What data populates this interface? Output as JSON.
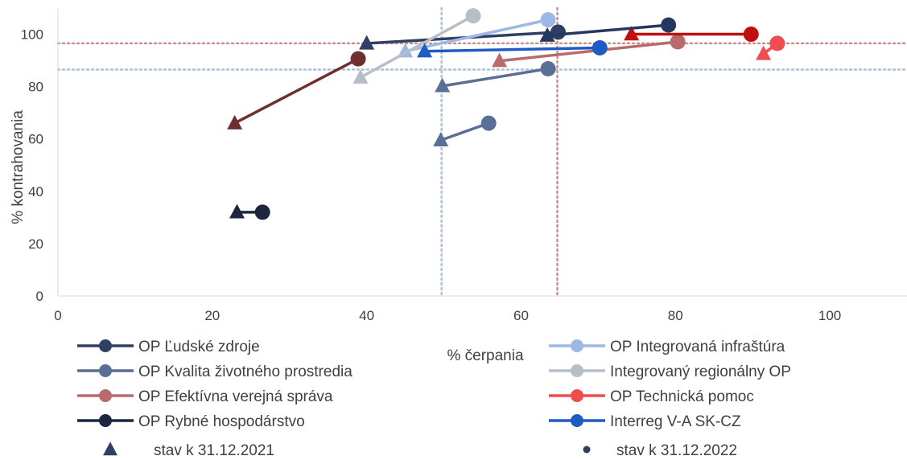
{
  "chart_data": {
    "type": "scatter",
    "xlabel": "% čerpania",
    "ylabel": "% kontrahovania",
    "xlim": [
      0,
      110
    ],
    "ylim": [
      0,
      110
    ],
    "xticks": [
      0,
      20,
      40,
      60,
      80,
      100
    ],
    "yticks": [
      0,
      20,
      40,
      60,
      80,
      100
    ],
    "grid": false,
    "reference_lines": {
      "vertical": [
        {
          "x": 49.7,
          "color": "#a9c1df"
        },
        {
          "x": 64.7,
          "color": "#cc8f8f"
        }
      ],
      "horizontal": [
        {
          "y": 96.5,
          "color": "#cc8f8f"
        },
        {
          "y": 86.5,
          "color": "#a9c1df"
        }
      ]
    },
    "series": [
      {
        "name": "OP Ľudské zdroje",
        "color": "#2e3f63",
        "points": [
          {
            "x": 40,
            "y": 96.5,
            "end": 2021
          },
          {
            "x": 64.8,
            "y": 100.8,
            "end": 2022
          }
        ]
      },
      {
        "name": "OP Integrovaná infraštúra",
        "color": "#9cb8e4",
        "points": [
          {
            "x": 45,
            "y": 93.5,
            "end": 2021
          },
          {
            "x": 63.5,
            "y": 105.5,
            "end": 2022
          }
        ]
      },
      {
        "name": "OP Kvalita životného prostredia",
        "color": "#5a6f96",
        "points": [
          {
            "x": 49.8,
            "y": 80.2,
            "end": 2021
          },
          {
            "x": 63.5,
            "y": 86.8,
            "end": 2022
          }
        ]
      },
      {
        "name": "OP Kvalita životného prostredia",
        "color": "#5a6f96",
        "legend": false,
        "points": [
          {
            "x": 49.6,
            "y": 59.5,
            "end": 2021
          },
          {
            "x": 55.8,
            "y": 66,
            "end": 2022
          }
        ]
      },
      {
        "name": "Integrovaný regionálny OP",
        "color": "#b8bec8",
        "points": [
          {
            "x": 39.2,
            "y": 83.5,
            "end": 2021
          },
          {
            "x": 53.8,
            "y": 107,
            "end": 2022
          }
        ]
      },
      {
        "name": "OP Efektívna verejná správa",
        "color": "#b96b6b",
        "points": [
          {
            "x": 57.2,
            "y": 89.8,
            "end": 2021
          },
          {
            "x": 80.3,
            "y": 97.1,
            "end": 2022
          }
        ]
      },
      {
        "name": "OP Technická pomoc",
        "color": "#f04e4e",
        "points": [
          {
            "x": 91.4,
            "y": 92.5,
            "end": 2021
          },
          {
            "x": 93.2,
            "y": 96.5,
            "end": 2022
          }
        ]
      },
      {
        "name": "OP Rybné hospodárstvo",
        "color": "#1c2640",
        "points": [
          {
            "x": 23.2,
            "y": 32,
            "end": 2021
          },
          {
            "x": 26.5,
            "y": 32,
            "end": 2022
          }
        ]
      },
      {
        "name": "Interreg V-A  SK-CZ",
        "color": "#1f5bc4",
        "points": [
          {
            "x": 47.5,
            "y": 93.5,
            "end": 2021
          },
          {
            "x": 70.2,
            "y": 94.8,
            "end": 2022
          }
        ]
      },
      {
        "name": "",
        "color": "#702f2f",
        "legend": false,
        "points": [
          {
            "x": 22.9,
            "y": 66,
            "end": 2021
          },
          {
            "x": 38.9,
            "y": 90.6,
            "end": 2022
          }
        ]
      },
      {
        "name": "",
        "color": "#c00f0f",
        "legend": false,
        "points": [
          {
            "x": 74.3,
            "y": 100,
            "end": 2021
          },
          {
            "x": 89.8,
            "y": 100,
            "end": 2022
          }
        ]
      },
      {
        "name": "",
        "color": "#24375e",
        "legend": false,
        "points": [
          {
            "x": 63.4,
            "y": 99.5,
            "end": 2021
          },
          {
            "x": 79.1,
            "y": 103.5,
            "end": 2022
          }
        ]
      }
    ],
    "legend": {
      "placement": "bottom",
      "columns": [
        [
          "OP Ľudské zdroje",
          "OP Kvalita životného prostredia",
          "OP Efektívna verejná správa",
          "OP Rybné hospodárstvo"
        ],
        [
          "OP Integrovaná infraštúra",
          "Integrovaný regionálny OP",
          "OP Technická pomoc",
          "Interreg V-A  SK-CZ"
        ]
      ],
      "markers": [
        {
          "label": "stav k 31.12.2021",
          "shape": "triangle",
          "color": "#2e3f63"
        },
        {
          "label": "stav k 31.12.2022",
          "shape": "dot",
          "color": "#2e3f63"
        }
      ]
    }
  }
}
